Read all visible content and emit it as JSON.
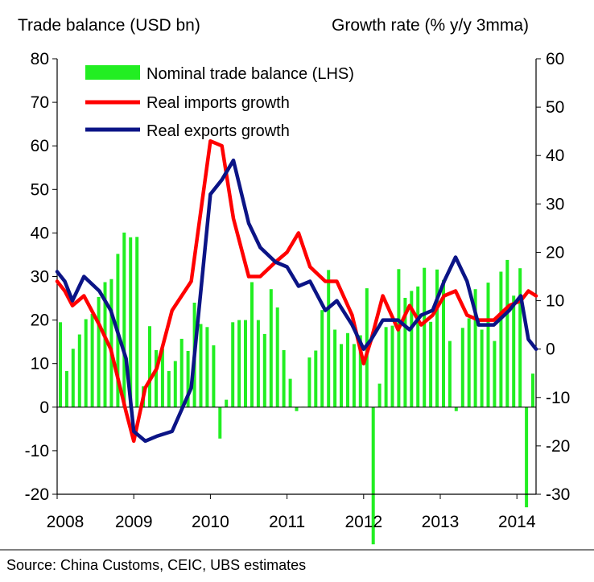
{
  "chart_data": {
    "type": "bar+line",
    "left_axis_title": "Trade balance (USD bn)",
    "right_axis_title": "Growth rate (% y/y 3mma)",
    "left_ylim": [
      -20,
      80
    ],
    "right_ylim": [
      -30,
      60
    ],
    "left_ticks": [
      -20,
      -10,
      0,
      10,
      20,
      30,
      40,
      50,
      60,
      70,
      80
    ],
    "right_ticks": [
      -30,
      -20,
      -10,
      0,
      10,
      20,
      30,
      40,
      50,
      60
    ],
    "x_start": 2008,
    "x_end": 2014.25,
    "x_ticks": [
      "2008",
      "2009",
      "2010",
      "2011",
      "2012",
      "2013",
      "2014"
    ],
    "legend": {
      "bars": "Nominal trade balance (LHS)",
      "imports": "Real imports growth",
      "exports": "Real exports growth"
    },
    "colors": {
      "bars": "#22ee22",
      "imports": "#ff0000",
      "exports": "#0b1486"
    },
    "bars": {
      "name": "Nominal trade balance (LHS)",
      "start": 2008.0,
      "values": [
        19.5,
        8.3,
        13.4,
        16.7,
        20.2,
        21.4,
        25.3,
        28.7,
        29.4,
        35.2,
        40.1,
        39.0,
        39.1,
        4.8,
        18.6,
        13.1,
        13.4,
        8.3,
        10.6,
        15.7,
        12.9,
        24.0,
        19.1,
        18.4,
        14.2,
        -7.2,
        1.7,
        19.5,
        20.0,
        20.0,
        28.7,
        20.0,
        16.8,
        27.1,
        22.9,
        13.1,
        6.5,
        -0.9,
        0.1,
        11.4,
        13.0,
        22.3,
        31.5,
        17.8,
        14.5,
        17.0,
        14.5,
        16.5,
        27.3,
        -31.5,
        5.4,
        18.4,
        18.7,
        31.7,
        25.1,
        26.7,
        27.7,
        32.0,
        19.6,
        31.6,
        29.2,
        15.2,
        -0.9,
        18.2,
        20.4,
        27.1,
        17.8,
        28.6,
        15.2,
        31.1,
        33.8,
        25.6,
        31.9,
        -23.0,
        7.7
      ]
    },
    "series": [
      {
        "name": "Real imports growth",
        "x": [
          2008.0,
          2008.1,
          2008.2,
          2008.35,
          2008.55,
          2008.7,
          2008.9,
          2009.0,
          2009.15,
          2009.3,
          2009.5,
          2009.75,
          2010.0,
          2010.15,
          2010.3,
          2010.5,
          2010.65,
          2010.85,
          2011.0,
          2011.15,
          2011.3,
          2011.5,
          2011.65,
          2011.85,
          2012.0,
          2012.1,
          2012.25,
          2012.45,
          2012.6,
          2012.75,
          2012.9,
          2013.05,
          2013.2,
          2013.35,
          2013.5,
          2013.7,
          2013.9,
          2014.05,
          2014.15,
          2014.25
        ],
        "values": [
          14,
          12,
          9,
          11,
          5,
          0,
          -13,
          -19,
          -8,
          -4,
          8,
          14,
          43,
          42,
          27,
          15,
          15,
          18,
          20,
          24,
          17,
          14,
          14,
          7,
          -3,
          2,
          11,
          4,
          9,
          5,
          7,
          11,
          12,
          7,
          6,
          6,
          9,
          10,
          12,
          11
        ],
        "color": "#ff0000"
      },
      {
        "name": "Real exports growth",
        "x": [
          2008.0,
          2008.1,
          2008.2,
          2008.35,
          2008.55,
          2008.7,
          2008.9,
          2009.0,
          2009.15,
          2009.3,
          2009.5,
          2009.75,
          2010.0,
          2010.15,
          2010.3,
          2010.5,
          2010.65,
          2010.85,
          2011.0,
          2011.15,
          2011.3,
          2011.5,
          2011.65,
          2011.85,
          2012.0,
          2012.1,
          2012.25,
          2012.45,
          2012.6,
          2012.75,
          2012.9,
          2013.05,
          2013.2,
          2013.35,
          2013.5,
          2013.7,
          2013.9,
          2014.05,
          2014.15,
          2014.25
        ],
        "values": [
          16,
          14,
          10,
          15,
          12,
          8,
          -2,
          -17,
          -19,
          -18,
          -17,
          -8,
          32,
          35,
          39,
          26,
          21,
          18,
          17,
          13,
          14,
          8,
          10,
          5,
          0,
          2,
          6,
          6,
          4,
          7,
          8,
          14,
          19,
          14,
          5,
          5,
          8,
          11,
          2,
          0
        ],
        "color": "#0b1486"
      }
    ]
  },
  "source": "Source:  China Customs, CEIC, UBS estimates"
}
